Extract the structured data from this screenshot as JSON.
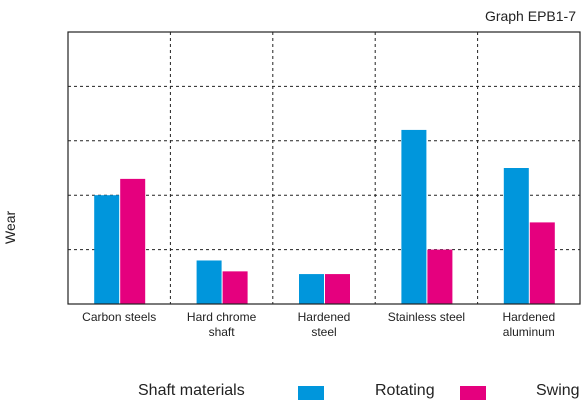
{
  "chart_data": {
    "type": "bar",
    "title": "Graph EPB1-7",
    "ylabel": "Wear",
    "legend_title": "Shaft materials",
    "categories": [
      [
        "Carbon steels"
      ],
      [
        "Hard chrome",
        "shaft"
      ],
      [
        "Hardened",
        "steel"
      ],
      [
        "Stainless steel"
      ],
      [
        "Hardened",
        "aluminum"
      ]
    ],
    "series": [
      {
        "name": "Rotating",
        "color": "#0096dc",
        "values": [
          2.0,
          0.8,
          0.55,
          3.2,
          2.5
        ]
      },
      {
        "name": "Swing",
        "color": "#e5007e",
        "values": [
          2.3,
          0.6,
          0.55,
          1.0,
          1.5
        ]
      }
    ],
    "ylim": [
      0,
      5
    ],
    "grid": true,
    "legend_position": "bottom"
  }
}
